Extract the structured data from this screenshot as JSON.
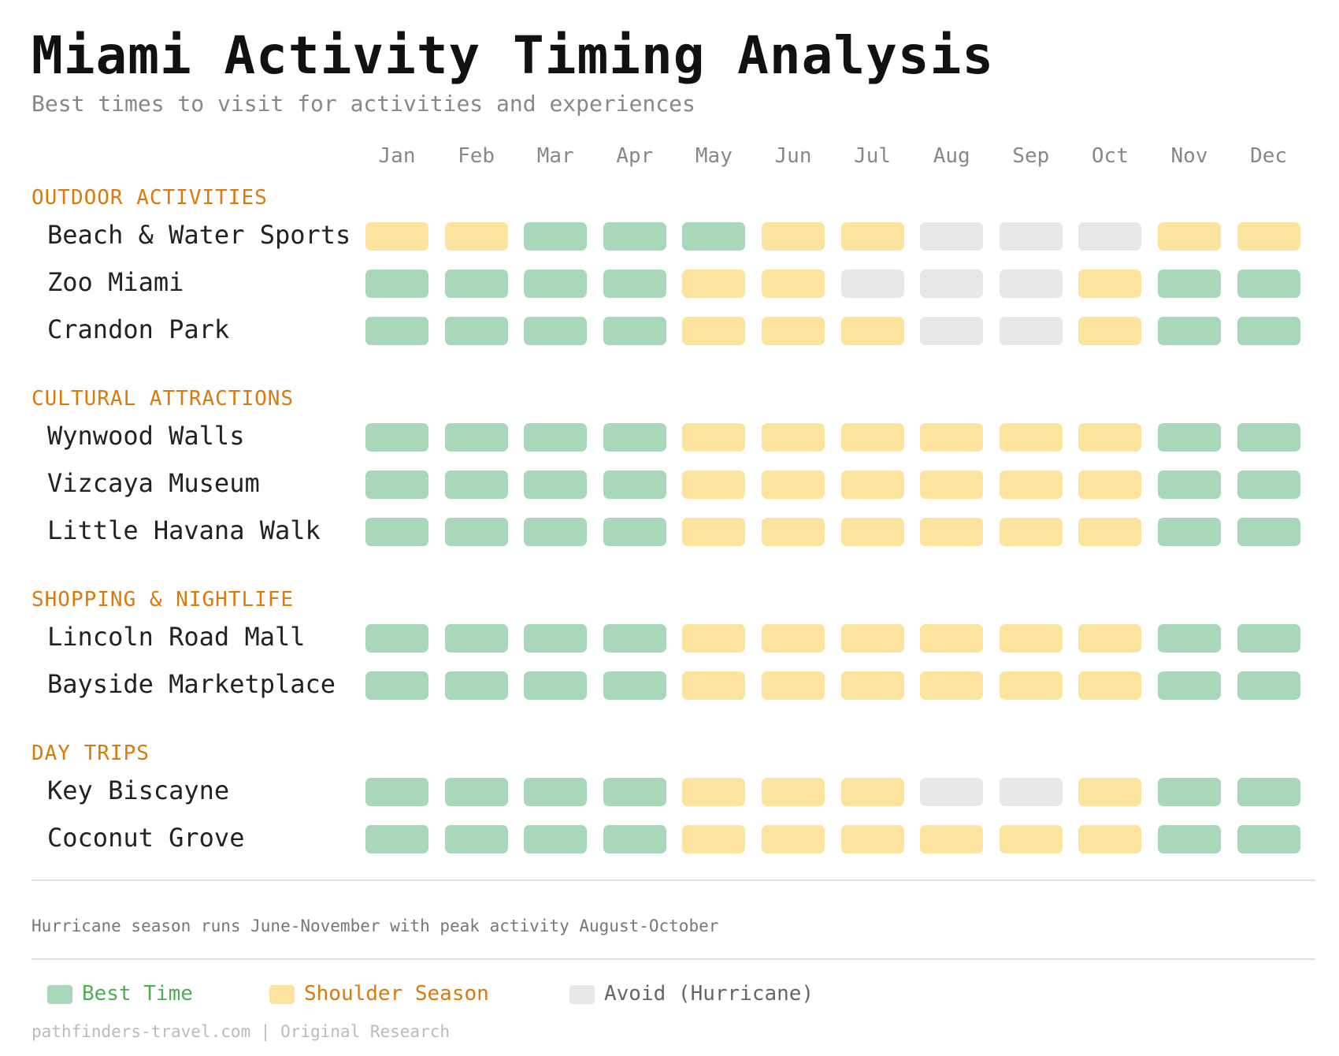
{
  "header": {
    "title": "Miami Activity Timing Analysis",
    "subtitle": "Best times to visit for activities and experiences"
  },
  "chart_data": {
    "type": "heatmap",
    "title": "Miami Activity Timing Analysis",
    "subtitle": "Best times to visit for activities and experiences",
    "months": [
      "Jan",
      "Feb",
      "Mar",
      "Apr",
      "May",
      "Jun",
      "Jul",
      "Aug",
      "Sep",
      "Oct",
      "Nov",
      "Dec"
    ],
    "status_colors": {
      "best": "#a8d8b9",
      "shoulder": "#fde49e",
      "avoid": "#e8e8e8"
    },
    "categories": [
      {
        "name": "OUTDOOR ACTIVITIES",
        "activities": [
          {
            "name": "Beach & Water Sports",
            "values": [
              "shoulder",
              "shoulder",
              "best",
              "best",
              "best",
              "shoulder",
              "shoulder",
              "avoid",
              "avoid",
              "avoid",
              "shoulder",
              "shoulder"
            ]
          },
          {
            "name": "Zoo Miami",
            "values": [
              "best",
              "best",
              "best",
              "best",
              "shoulder",
              "shoulder",
              "avoid",
              "avoid",
              "avoid",
              "shoulder",
              "best",
              "best"
            ]
          },
          {
            "name": "Crandon Park",
            "values": [
              "best",
              "best",
              "best",
              "best",
              "shoulder",
              "shoulder",
              "shoulder",
              "avoid",
              "avoid",
              "shoulder",
              "best",
              "best"
            ]
          }
        ]
      },
      {
        "name": "CULTURAL ATTRACTIONS",
        "activities": [
          {
            "name": "Wynwood Walls",
            "values": [
              "best",
              "best",
              "best",
              "best",
              "shoulder",
              "shoulder",
              "shoulder",
              "shoulder",
              "shoulder",
              "shoulder",
              "best",
              "best"
            ]
          },
          {
            "name": "Vizcaya Museum",
            "values": [
              "best",
              "best",
              "best",
              "best",
              "shoulder",
              "shoulder",
              "shoulder",
              "shoulder",
              "shoulder",
              "shoulder",
              "best",
              "best"
            ]
          },
          {
            "name": "Little Havana Walk",
            "values": [
              "best",
              "best",
              "best",
              "best",
              "shoulder",
              "shoulder",
              "shoulder",
              "shoulder",
              "shoulder",
              "shoulder",
              "best",
              "best"
            ]
          }
        ]
      },
      {
        "name": "SHOPPING & NIGHTLIFE",
        "activities": [
          {
            "name": "Lincoln Road Mall",
            "values": [
              "best",
              "best",
              "best",
              "best",
              "shoulder",
              "shoulder",
              "shoulder",
              "shoulder",
              "shoulder",
              "shoulder",
              "best",
              "best"
            ]
          },
          {
            "name": "Bayside Marketplace",
            "values": [
              "best",
              "best",
              "best",
              "best",
              "shoulder",
              "shoulder",
              "shoulder",
              "shoulder",
              "shoulder",
              "shoulder",
              "best",
              "best"
            ]
          }
        ]
      },
      {
        "name": "DAY TRIPS",
        "activities": [
          {
            "name": "Key Biscayne",
            "values": [
              "best",
              "best",
              "best",
              "best",
              "shoulder",
              "shoulder",
              "shoulder",
              "avoid",
              "avoid",
              "shoulder",
              "best",
              "best"
            ]
          },
          {
            "name": "Coconut Grove",
            "values": [
              "best",
              "best",
              "best",
              "best",
              "shoulder",
              "shoulder",
              "shoulder",
              "shoulder",
              "shoulder",
              "shoulder",
              "best",
              "best"
            ]
          }
        ]
      }
    ],
    "legend": [
      {
        "key": "best",
        "label": "Best Time",
        "text_color": "#4caf50"
      },
      {
        "key": "shoulder",
        "label": "Shoulder Season",
        "text_color": "#d97a0a"
      },
      {
        "key": "avoid",
        "label": "Avoid (Hurricane)",
        "text_color": "#666666"
      }
    ]
  },
  "note": "Hurricane season runs June-November with peak activity August-October",
  "footer": "pathfinders-travel.com | Original Research"
}
